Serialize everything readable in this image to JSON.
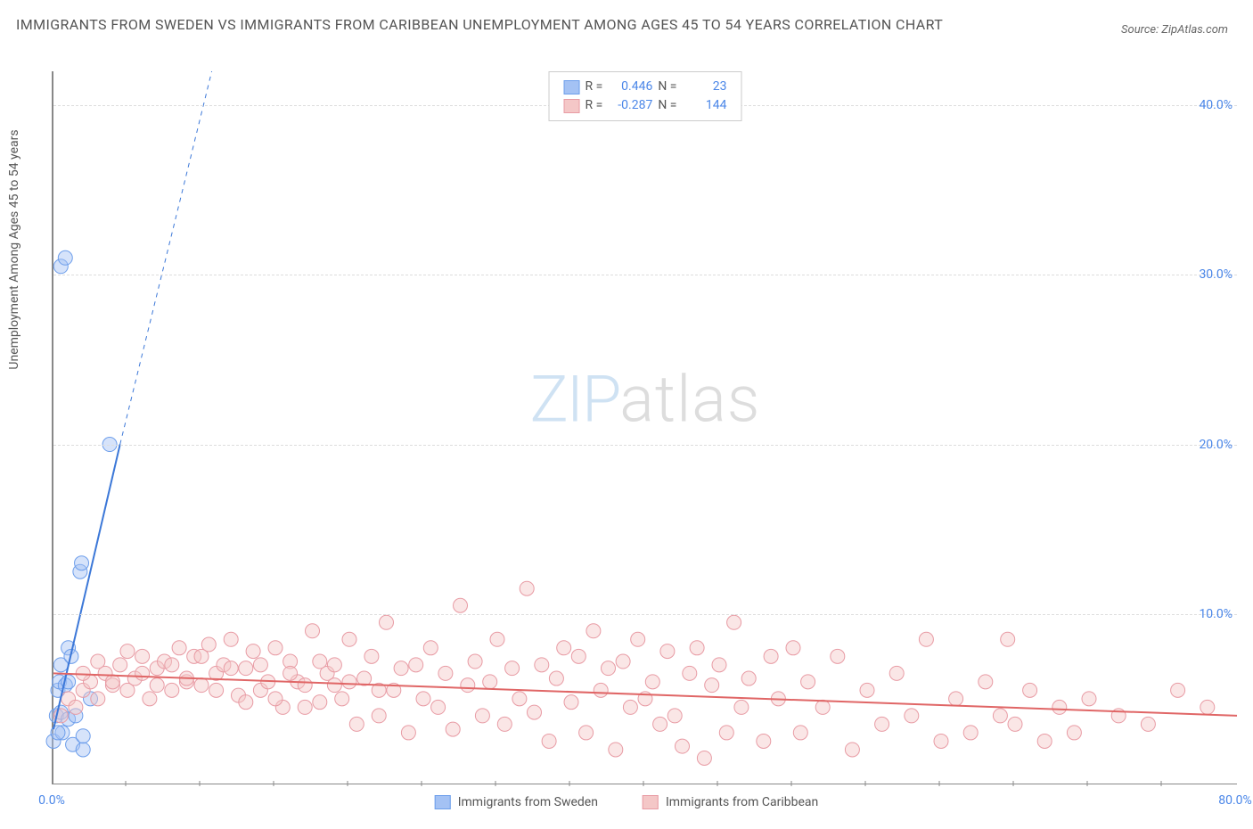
{
  "title": "IMMIGRANTS FROM SWEDEN VS IMMIGRANTS FROM CARIBBEAN UNEMPLOYMENT AMONG AGES 45 TO 54 YEARS CORRELATION CHART",
  "source": "Source: ZipAtlas.com",
  "y_axis_label": "Unemployment Among Ages 45 to 54 years",
  "watermark_a": "ZIP",
  "watermark_b": "atlas",
  "chart": {
    "type": "scatter",
    "x_domain": [
      0,
      80
    ],
    "y_domain": [
      0,
      42
    ],
    "x_ticks": [
      0,
      80
    ],
    "x_tick_labels": [
      "0.0%",
      "80.0%"
    ],
    "x_minor_ticks": [
      5,
      10,
      15,
      20,
      25,
      30,
      35,
      40,
      45,
      50,
      55,
      60,
      65,
      70,
      75
    ],
    "y_ticks": [
      10,
      20,
      30,
      40
    ],
    "y_tick_labels": [
      "10.0%",
      "20.0%",
      "30.0%",
      "40.0%"
    ],
    "background_color": "#ffffff",
    "grid_color": "#dddddd",
    "axis_color": "#888888",
    "marker_radius": 8,
    "marker_opacity": 0.45,
    "series": [
      {
        "name": "Immigrants from Sweden",
        "color_fill": "#a4c2f4",
        "color_stroke": "#6d9eeb",
        "r_value": "0.446",
        "n_value": "23",
        "trend": {
          "x1": 0,
          "y1": 3.2,
          "x2": 4.5,
          "y2": 20,
          "dash_to_x": 10.7,
          "dash_to_y": 42,
          "color": "#3c78d8",
          "width": 2
        },
        "points": [
          [
            0.0,
            2.5
          ],
          [
            0.2,
            4.0
          ],
          [
            0.3,
            5.5
          ],
          [
            0.4,
            6.0
          ],
          [
            0.5,
            7.0
          ],
          [
            0.5,
            4.2
          ],
          [
            0.6,
            3.0
          ],
          [
            0.8,
            5.8
          ],
          [
            1.0,
            8.0
          ],
          [
            1.0,
            3.8
          ],
          [
            1.2,
            7.5
          ],
          [
            1.3,
            2.3
          ],
          [
            1.5,
            4.0
          ],
          [
            1.8,
            12.5
          ],
          [
            1.9,
            13.0
          ],
          [
            2.5,
            5.0
          ],
          [
            2.0,
            2.0
          ],
          [
            3.8,
            20.0
          ],
          [
            0.5,
            30.5
          ],
          [
            0.8,
            31.0
          ],
          [
            2.0,
            2.8
          ],
          [
            1.0,
            6.0
          ],
          [
            0.3,
            3.0
          ]
        ]
      },
      {
        "name": "Immigrants from Caribbean",
        "color_fill": "#f4c7c7",
        "color_stroke": "#e89ba4",
        "r_value": "-0.287",
        "n_value": "144",
        "trend": {
          "x1": 0,
          "y1": 6.5,
          "x2": 80,
          "y2": 4.0,
          "color": "#e06666",
          "width": 2
        },
        "points": [
          [
            0.5,
            4.0
          ],
          [
            1.0,
            5.0
          ],
          [
            1.5,
            4.5
          ],
          [
            2.0,
            5.5
          ],
          [
            2.5,
            6.0
          ],
          [
            3.0,
            5.0
          ],
          [
            3.5,
            6.5
          ],
          [
            4.0,
            5.8
          ],
          [
            4.5,
            7.0
          ],
          [
            5.0,
            5.5
          ],
          [
            5.5,
            6.2
          ],
          [
            6.0,
            7.5
          ],
          [
            6.5,
            5.0
          ],
          [
            7.0,
            6.8
          ],
          [
            7.5,
            7.2
          ],
          [
            8.0,
            5.5
          ],
          [
            8.5,
            8.0
          ],
          [
            9.0,
            6.0
          ],
          [
            9.5,
            7.5
          ],
          [
            10.0,
            5.8
          ],
          [
            10.5,
            8.2
          ],
          [
            11.0,
            6.5
          ],
          [
            11.5,
            7.0
          ],
          [
            12.0,
            8.5
          ],
          [
            12.5,
            5.2
          ],
          [
            13.0,
            6.8
          ],
          [
            13.5,
            7.8
          ],
          [
            14.0,
            5.5
          ],
          [
            14.5,
            6.0
          ],
          [
            15.0,
            8.0
          ],
          [
            15.5,
            4.5
          ],
          [
            16.0,
            7.2
          ],
          [
            16.5,
            6.0
          ],
          [
            17.0,
            5.8
          ],
          [
            17.5,
            9.0
          ],
          [
            18.0,
            4.8
          ],
          [
            18.5,
            6.5
          ],
          [
            19.0,
            7.0
          ],
          [
            19.5,
            5.0
          ],
          [
            20.0,
            8.5
          ],
          [
            20.5,
            3.5
          ],
          [
            21.0,
            6.2
          ],
          [
            21.5,
            7.5
          ],
          [
            22.0,
            4.0
          ],
          [
            22.5,
            9.5
          ],
          [
            23.0,
            5.5
          ],
          [
            23.5,
            6.8
          ],
          [
            24.0,
            3.0
          ],
          [
            24.5,
            7.0
          ],
          [
            25.0,
            5.0
          ],
          [
            25.5,
            8.0
          ],
          [
            26.0,
            4.5
          ],
          [
            26.5,
            6.5
          ],
          [
            27.0,
            3.2
          ],
          [
            27.5,
            10.5
          ],
          [
            28.0,
            5.8
          ],
          [
            28.5,
            7.2
          ],
          [
            29.0,
            4.0
          ],
          [
            29.5,
            6.0
          ],
          [
            30.0,
            8.5
          ],
          [
            30.5,
            3.5
          ],
          [
            31.0,
            6.8
          ],
          [
            31.5,
            5.0
          ],
          [
            32.0,
            11.5
          ],
          [
            32.5,
            4.2
          ],
          [
            33.0,
            7.0
          ],
          [
            33.5,
            2.5
          ],
          [
            34.0,
            6.2
          ],
          [
            34.5,
            8.0
          ],
          [
            35.0,
            4.8
          ],
          [
            35.5,
            7.5
          ],
          [
            36.0,
            3.0
          ],
          [
            36.5,
            9.0
          ],
          [
            37.0,
            5.5
          ],
          [
            37.5,
            6.8
          ],
          [
            38.0,
            2.0
          ],
          [
            38.5,
            7.2
          ],
          [
            39.0,
            4.5
          ],
          [
            39.5,
            8.5
          ],
          [
            40.0,
            5.0
          ],
          [
            40.5,
            6.0
          ],
          [
            41.0,
            3.5
          ],
          [
            41.5,
            7.8
          ],
          [
            42.0,
            4.0
          ],
          [
            42.5,
            2.2
          ],
          [
            43.0,
            6.5
          ],
          [
            43.5,
            8.0
          ],
          [
            44.0,
            1.5
          ],
          [
            44.5,
            5.8
          ],
          [
            45.0,
            7.0
          ],
          [
            45.5,
            3.0
          ],
          [
            46.0,
            9.5
          ],
          [
            46.5,
            4.5
          ],
          [
            47.0,
            6.2
          ],
          [
            48.0,
            2.5
          ],
          [
            48.5,
            7.5
          ],
          [
            49.0,
            5.0
          ],
          [
            50.0,
            8.0
          ],
          [
            50.5,
            3.0
          ],
          [
            51.0,
            6.0
          ],
          [
            52.0,
            4.5
          ],
          [
            53.0,
            7.5
          ],
          [
            54.0,
            2.0
          ],
          [
            55.0,
            5.5
          ],
          [
            56.0,
            3.5
          ],
          [
            57.0,
            6.5
          ],
          [
            58.0,
            4.0
          ],
          [
            59.0,
            8.5
          ],
          [
            60.0,
            2.5
          ],
          [
            61.0,
            5.0
          ],
          [
            62.0,
            3.0
          ],
          [
            63.0,
            6.0
          ],
          [
            64.0,
            4.0
          ],
          [
            64.5,
            8.5
          ],
          [
            65.0,
            3.5
          ],
          [
            66.0,
            5.5
          ],
          [
            67.0,
            2.5
          ],
          [
            68.0,
            4.5
          ],
          [
            69.0,
            3.0
          ],
          [
            70.0,
            5.0
          ],
          [
            72.0,
            4.0
          ],
          [
            74.0,
            3.5
          ],
          [
            76.0,
            5.5
          ],
          [
            78.0,
            4.5
          ],
          [
            2.0,
            6.5
          ],
          [
            3.0,
            7.2
          ],
          [
            4.0,
            6.0
          ],
          [
            5.0,
            7.8
          ],
          [
            6.0,
            6.5
          ],
          [
            7.0,
            5.8
          ],
          [
            8.0,
            7.0
          ],
          [
            9.0,
            6.2
          ],
          [
            10.0,
            7.5
          ],
          [
            11.0,
            5.5
          ],
          [
            12.0,
            6.8
          ],
          [
            13.0,
            4.8
          ],
          [
            14.0,
            7.0
          ],
          [
            15.0,
            5.0
          ],
          [
            16.0,
            6.5
          ],
          [
            17.0,
            4.5
          ],
          [
            18.0,
            7.2
          ],
          [
            19.0,
            5.8
          ],
          [
            20.0,
            6.0
          ],
          [
            22.0,
            5.5
          ]
        ]
      }
    ]
  },
  "legend_top": {
    "r_label": "R =",
    "n_label": "N ="
  },
  "legend_bottom": [
    "Immigrants from Sweden",
    "Immigrants from Caribbean"
  ]
}
